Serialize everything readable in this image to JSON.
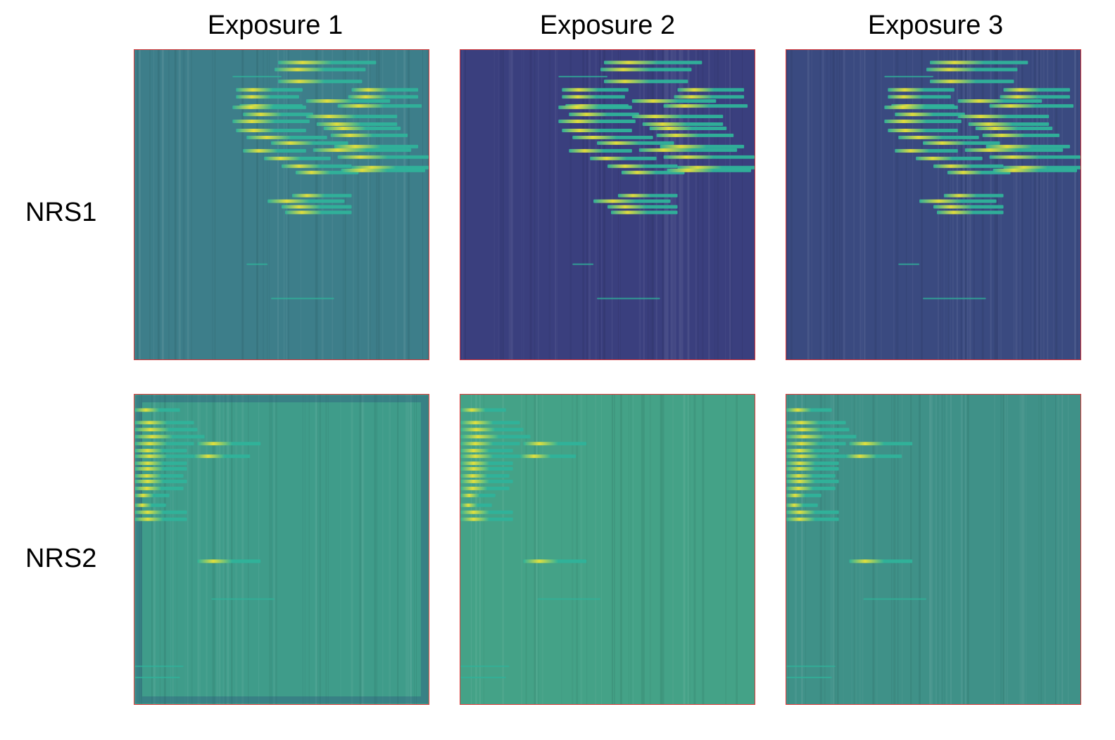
{
  "columns": [
    "Exposure 1",
    "Exposure 2",
    "Exposure 3"
  ],
  "rows": [
    "NRS1",
    "NRS2"
  ],
  "colors": {
    "frame_border": "#e03a3a",
    "nrs1_bg": [
      "#3d7e8a",
      "#3a3f7e",
      "#3a4a80"
    ],
    "nrs2_bg": [
      "#3f9c8a",
      "#44a287",
      "#3f9188"
    ],
    "trace_dim": "#2fb39a",
    "trace_bright": "#e8e33a"
  }
}
